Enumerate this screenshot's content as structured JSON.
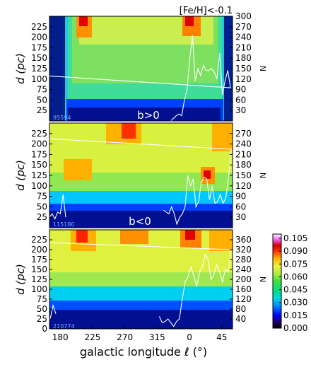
{
  "chart_data": [
    {
      "type": "heatmap",
      "panel": "top",
      "title": "[Fe/H]<-0.1",
      "annotation": "b>0",
      "count_label": "95594",
      "xlabel": "",
      "ylabel": "d (pc)",
      "ylabel_right": "N",
      "xlim": [
        150,
        60
      ],
      "ylim": [
        0,
        250
      ],
      "y2lim": [
        0,
        300
      ],
      "yticks": [
        "25",
        "50",
        "75",
        "100",
        "125",
        "150",
        "175",
        "200",
        "225"
      ],
      "y2ticks": [
        "30",
        "60",
        "90",
        "120",
        "150",
        "180",
        "210",
        "240",
        "270",
        "300"
      ],
      "line": {
        "x": [
          150,
          145,
          141,
          137,
          133,
          129,
          125,
          121,
          117,
          113,
          109,
          105,
          101,
          97,
          93,
          89,
          85,
          81,
          77,
          73,
          69,
          65,
          61,
          57,
          53,
          49,
          45,
          41,
          37,
          33,
          29,
          25,
          21,
          17,
          13,
          9,
          5,
          1,
          -3,
          -7,
          -11,
          -15,
          -19,
          -23,
          -27,
          -31,
          -35,
          -39,
          -43,
          -47,
          -51,
          -55,
          -60
        ],
        "y": [
          0,
          0,
          20,
          100,
          272,
          200,
          120,
          40,
          20,
          35,
          30,
          100,
          60,
          40,
          20,
          50,
          75,
          70,
          135,
          95,
          155,
          105,
          140,
          95,
          145,
          115,
          75,
          195,
          120,
          140,
          150,
          145,
          145,
          160,
          130,
          150,
          115,
          245,
          180,
          90,
          60,
          15,
          20,
          15,
          8,
          0,
          0,
          0,
          0,
          0,
          0,
          0,
          0
        ]
      }
    },
    {
      "type": "heatmap",
      "panel": "middle",
      "annotation": "b<0",
      "count_label": "115180",
      "xlabel": "",
      "ylabel": "d (pc)",
      "ylabel_right": "N",
      "xlim": [
        150,
        60
      ],
      "ylim": [
        0,
        250
      ],
      "y2lim": [
        0,
        300
      ],
      "yticks": [
        "25",
        "50",
        "75",
        "100",
        "125",
        "150",
        "175",
        "200",
        "225"
      ],
      "y2ticks": [
        "30",
        "60",
        "90",
        "120",
        "150",
        "180",
        "210",
        "240",
        "270"
      ],
      "line": {
        "x": [
          174,
          170,
          166,
          162,
          158,
          154,
          150,
          146,
          142,
          138,
          134,
          130,
          126,
          122,
          118,
          114,
          110,
          106,
          102,
          98,
          94,
          90,
          86,
          82,
          78,
          74,
          70,
          66,
          62,
          58,
          54,
          50,
          46,
          42,
          38,
          34,
          30,
          26,
          22,
          18,
          14,
          10,
          6,
          2,
          -2,
          -6,
          -10,
          -14,
          -18,
          -22,
          -26,
          -30,
          -34,
          -38,
          -42
        ],
        "y": [
          30,
          95,
          40,
          45,
          25,
          40,
          30,
          30,
          35,
          30,
          45,
          40,
          30,
          40,
          20,
          45,
          25,
          30,
          45,
          55,
          30,
          55,
          60,
          50,
          140,
          180,
          215,
          260,
          265,
          225,
          140,
          85,
          70,
          95,
          75,
          70,
          120,
          80,
          140,
          145,
          130,
          75,
          60,
          140,
          120,
          150,
          60,
          40,
          30,
          10,
          40,
          60,
          40,
          45,
          50
        ]
      }
    },
    {
      "type": "heatmap",
      "panel": "bottom",
      "count_label": "210774",
      "xlabel": "galactic longitude ℓ (°)",
      "ylabel": "d (pc)",
      "ylabel_right": "N",
      "xlim": [
        165,
        60
      ],
      "ylim": [
        0,
        250
      ],
      "y2lim": [
        0,
        400
      ],
      "xticks": [
        "180",
        "225",
        "270",
        "315",
        "0",
        "45"
      ],
      "yticks": [
        "0",
        "25",
        "50",
        "75",
        "100",
        "125",
        "150",
        "175",
        "200",
        "225"
      ],
      "y2ticks": [
        "40",
        "80",
        "120",
        "160",
        "200",
        "240",
        "280",
        "320",
        "360"
      ],
      "line": {
        "x": [
          174,
          170,
          166,
          162,
          158,
          154,
          150,
          146,
          142,
          138,
          134,
          130,
          126,
          122,
          118,
          114,
          110,
          106,
          102,
          98,
          94,
          90,
          86,
          82,
          78,
          74,
          70,
          66,
          62,
          58,
          54,
          50,
          46,
          42,
          38,
          34,
          30,
          26,
          22,
          18,
          14,
          10,
          6,
          2,
          -2,
          -6,
          -10,
          -14,
          -18,
          -22,
          -26,
          -30,
          -34,
          -38,
          -42
        ],
        "y": [
          60,
          95,
          40,
          20,
          60,
          30,
          100,
          120,
          250,
          140,
          60,
          40,
          80,
          100,
          40,
          60,
          100,
          160,
          120,
          70,
          140,
          160,
          220,
          130,
          205,
          360,
          375,
          375,
          360,
          320,
          230,
          240,
          190,
          230,
          260,
          220,
          200,
          280,
          300,
          250,
          230,
          170,
          215,
          250,
          210,
          190,
          120,
          40,
          30,
          10,
          25,
          40,
          30,
          25,
          50
        ]
      }
    }
  ],
  "colorbar": {
    "ticks": [
      "0.000",
      "0.015",
      "0.030",
      "0.045",
      "0.060",
      "0.075",
      "0.090",
      "0.105"
    ],
    "range": [
      0,
      0.11
    ]
  },
  "colors": {
    "line": "#ffffff",
    "background": "#ffffff"
  }
}
